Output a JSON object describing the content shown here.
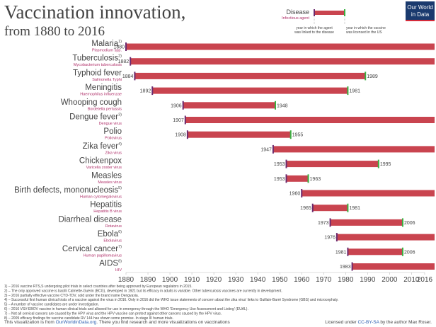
{
  "chart_data": {
    "type": "range",
    "title": "Vaccination innovation,",
    "subtitle": "from 1880 to 2016",
    "logo": [
      "Our World",
      "in Data"
    ],
    "legend": {
      "disease": "Disease",
      "agent": "Infectious agent",
      "start_caption": [
        "year in which the agent",
        "was linked to the disease"
      ],
      "end_caption": [
        "year in which the vaccine",
        "was licensed in the US"
      ]
    },
    "categories": [
      "Malaria",
      "Tuberculosis",
      "Typhoid fever",
      "Meningitis",
      "Whooping cough",
      "Dengue fever",
      "Polio",
      "Zika fever",
      "Chickenpox",
      "Measles",
      "Birth defects, mononucleosis",
      "Hepatitis",
      "Diarrheal disease",
      "Ebola",
      "Cervical cancer",
      "AIDS"
    ],
    "notes": [
      "1)",
      "2)",
      null,
      null,
      null,
      "3)",
      null,
      "4)",
      null,
      null,
      "5)",
      null,
      null,
      "6)",
      "7)",
      "8)"
    ],
    "agents": [
      "Plasmodium spp.",
      "Mycobacterium tuberculosis",
      "Salmonella Typhi",
      "Haemophilus influenzae",
      "Bordetella pertussis",
      "Dengue virus",
      "Poliovirus",
      "Zika virus",
      "Varicella zoster virus",
      "Measles virus",
      "Human cytomegalovirus",
      "Hepatitis B virus",
      "Rotavirus",
      "Ebolavirus",
      "Human papillomavirus",
      "HIV"
    ],
    "start": [
      1880,
      1882,
      1884,
      1892,
      1906,
      1907,
      1908,
      1947,
      1953,
      1953,
      1960,
      1965,
      1973,
      1976,
      1981,
      1983
    ],
    "end": [
      null,
      null,
      1989,
      1981,
      1948,
      null,
      1955,
      null,
      1995,
      1963,
      null,
      1981,
      2006,
      null,
      2006,
      null
    ],
    "bar_color": "#c9444f",
    "start_color": "#6b2a6e",
    "end_color": "#3cb043",
    "agent_color": "#b0306a",
    "xlim": [
      1880,
      2016
    ],
    "xticks": [
      1880,
      1890,
      1900,
      1910,
      1920,
      1930,
      1940,
      1950,
      1960,
      1970,
      1980,
      1990,
      2000,
      2010,
      2016
    ],
    "footnotes": [
      "1) – 2016 vaccine RTS,S undergoing pilot trials in select countries after being approved by European regulators in 2015.",
      "2) – The only approved vaccine is bacilli Calmette-Guérin (BCG), developed in 1921 but its efficacy in adults is variable. Other tuberculosis vaccines are currently in development.",
      "3) – 2016 partially effective vaccine CYD-TDV, sold under the brand name Dengvaxia.",
      "4) – Successful first human clinical trials of a vaccine against the virus in 2016. Only in 2016 did the WHO issue statements of concern about the zika virus' links to Guillain-Barré Syndrome (GBS) and microcephaly.",
      "5) – A number of vaccine candidates are under investigation.",
      "6) – 2016 VSV-EBOV vaccine in human clinical trials and allowed for use in emergency through the WHO 'Emergency Use Assessment and Listing' (EUAL).",
      "7) – Not all cervical cancers are caused by the HPV virus and the HPV vaccine can protect against other cancers caused by the HPV virus.",
      "8) – 2009 efficacy findings for vaccine candidate RV 144 has shown some promise. In stage III human trials."
    ],
    "footer_left": [
      "This visualization is from ",
      "OurWorldinData.org",
      ". There you find research and more visualizations on vaccinations"
    ],
    "footer_right": [
      "Licensed under ",
      "CC-BY-SA",
      " by the author Max Roser."
    ]
  }
}
